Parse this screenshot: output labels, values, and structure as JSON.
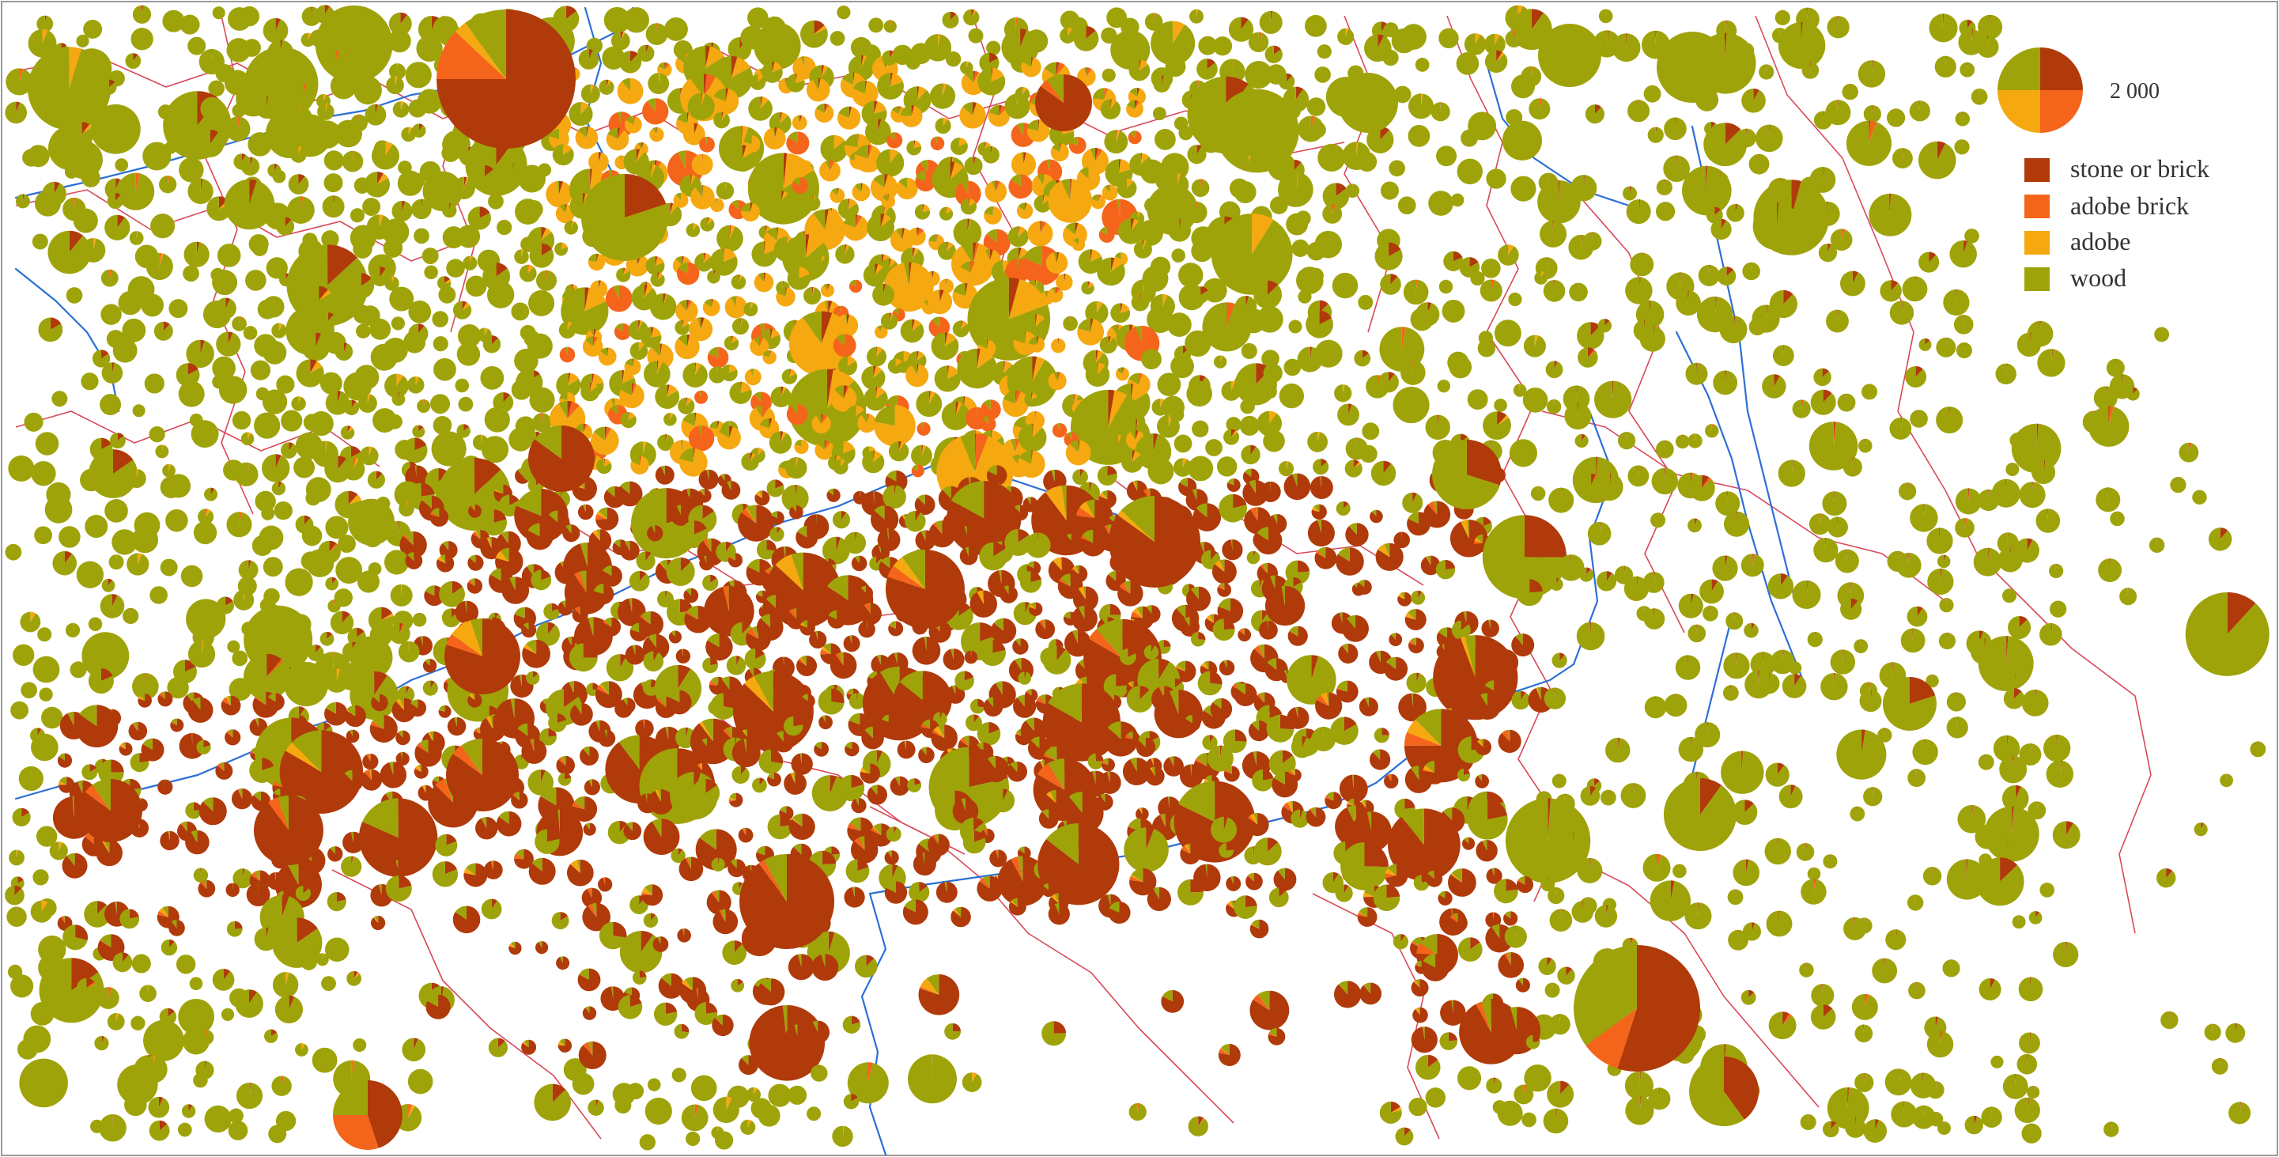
{
  "legend": {
    "scale_value_label": "2 000",
    "items": [
      {
        "label": "stone or brick",
        "color": "#b03a0a"
      },
      {
        "label": "adobe brick",
        "color": "#f4651b"
      },
      {
        "label": "adobe",
        "color": "#f6a811"
      },
      {
        "label": "wood",
        "color": "#9fa30a"
      }
    ]
  },
  "colors": {
    "boundary": "#d9485a",
    "river": "#2c6fd6",
    "frame": "#999999",
    "background": "#ffffff"
  },
  "map": {
    "symbol_type": "proportional pie charts",
    "categories": [
      "stone or brick",
      "adobe brick",
      "adobe",
      "wood"
    ]
  }
}
